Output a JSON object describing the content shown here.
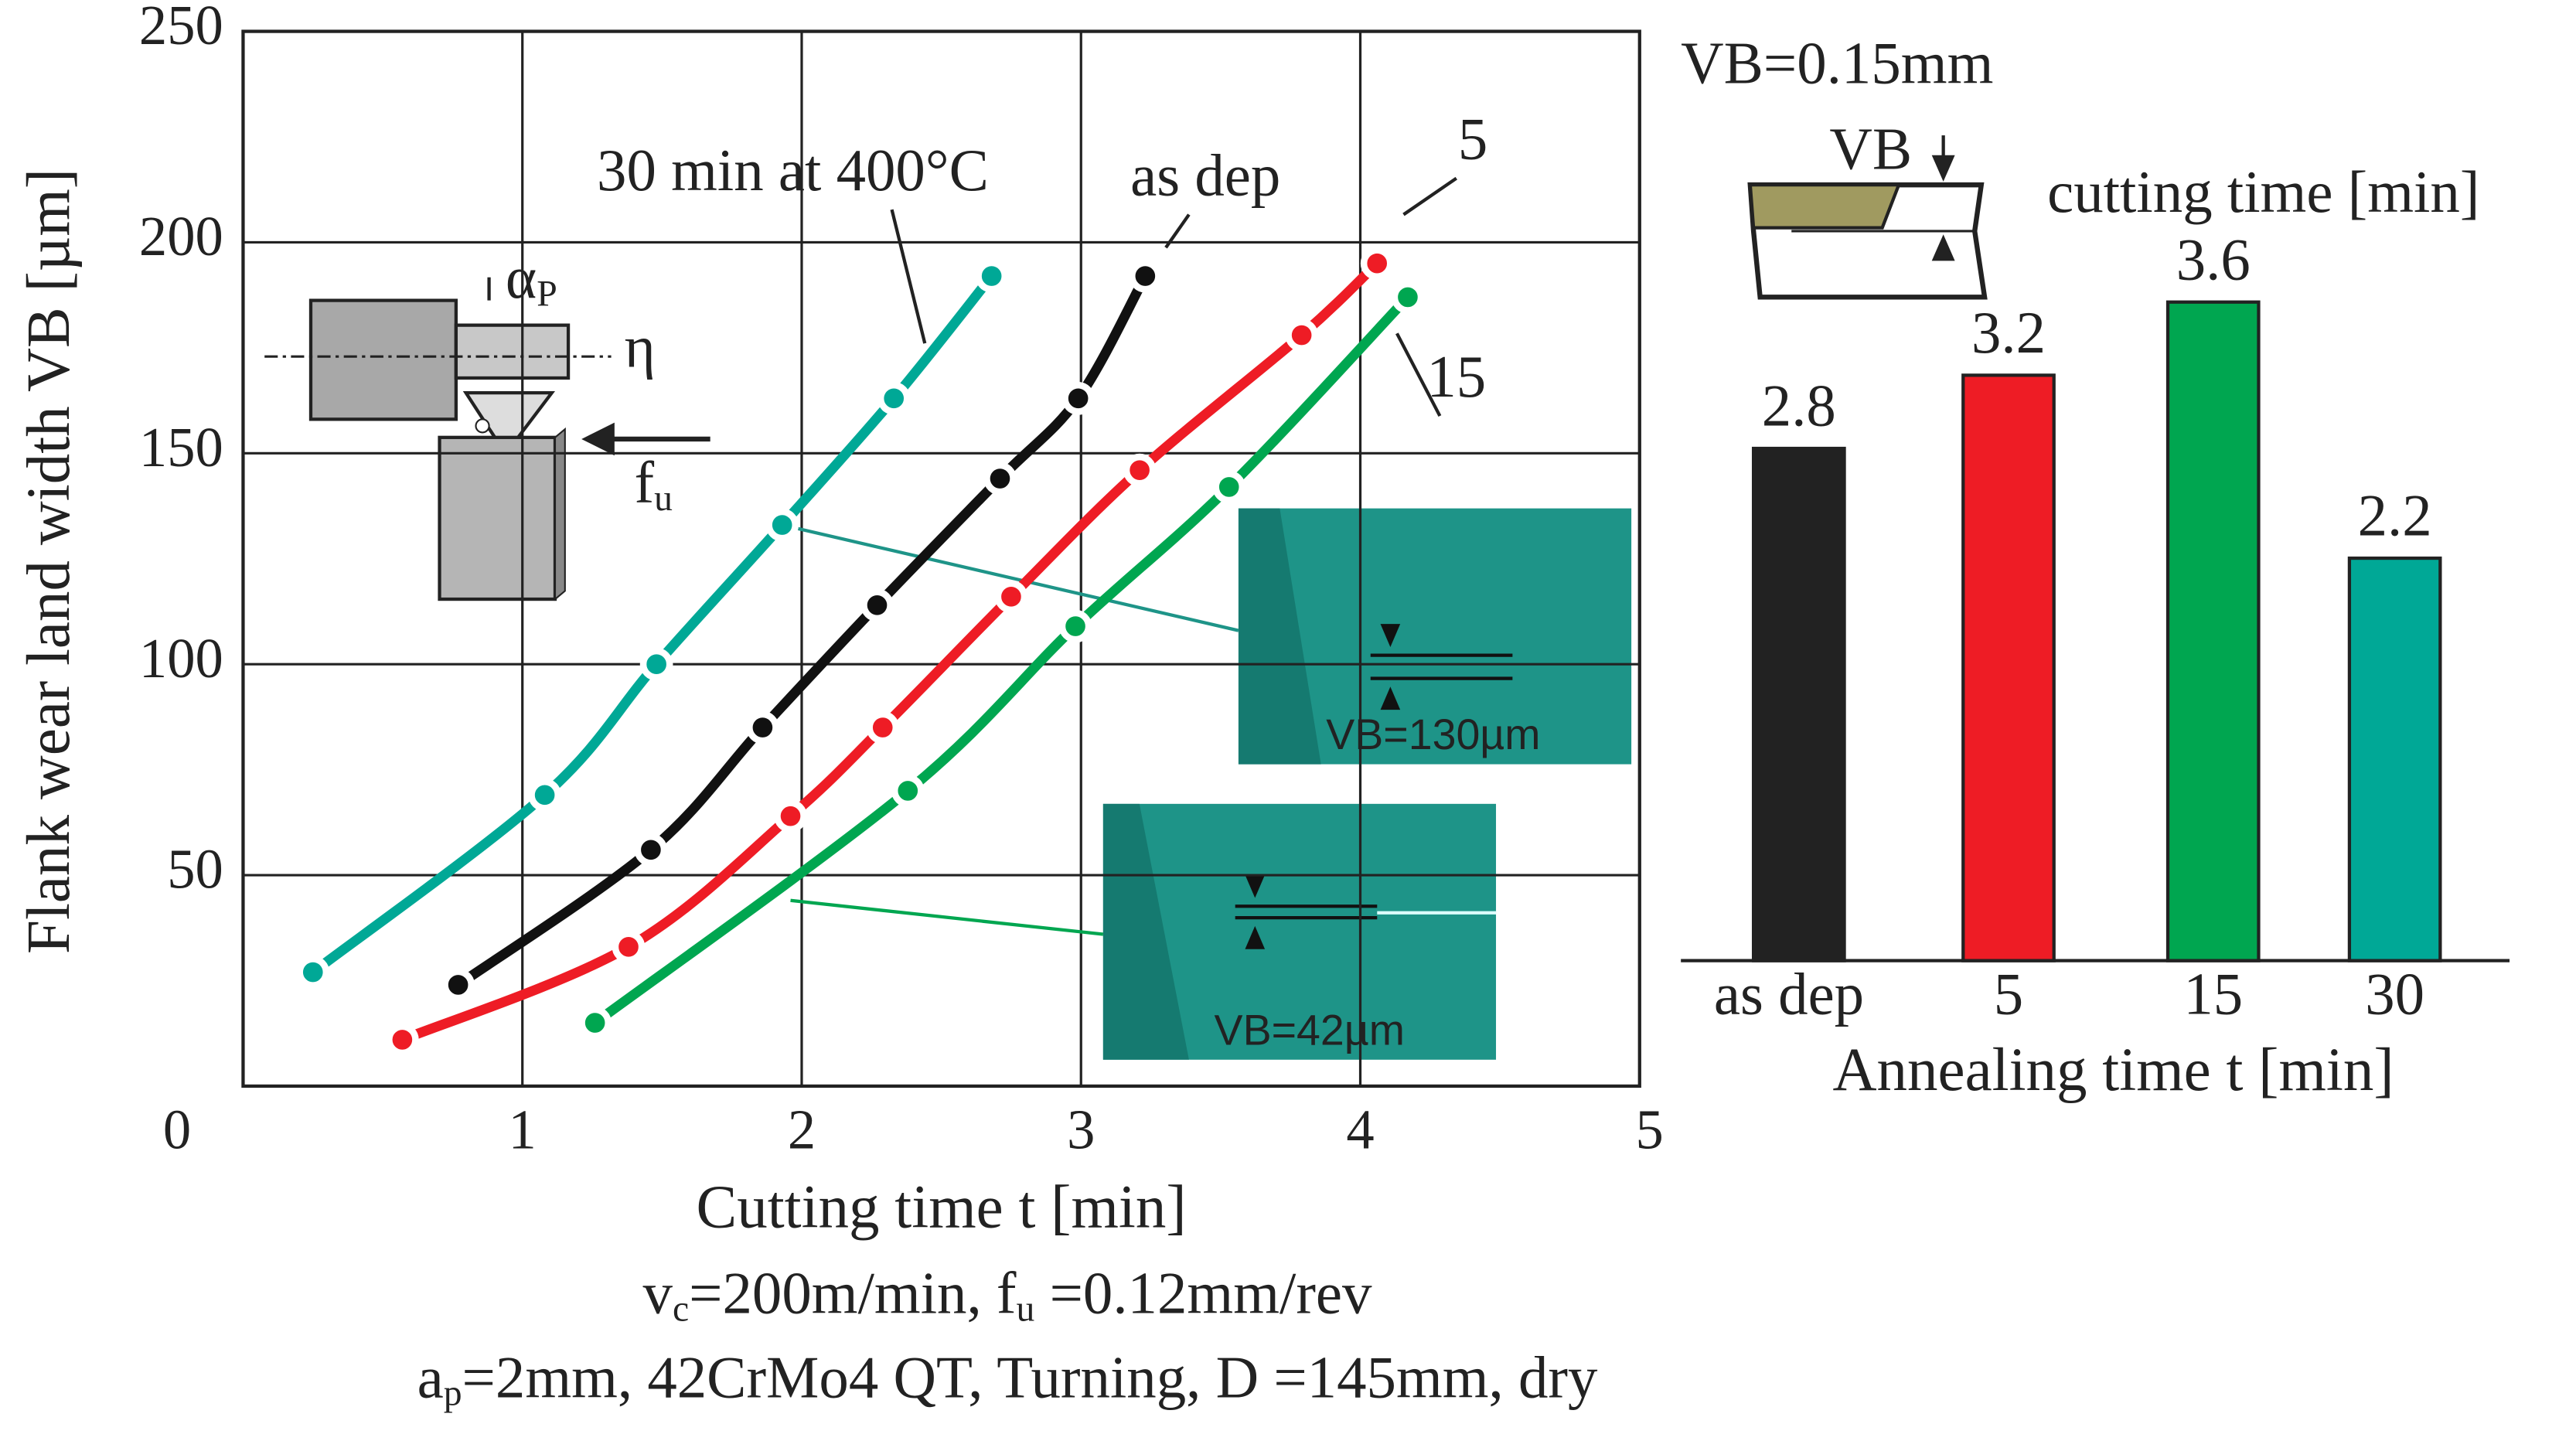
{
  "chart_data": [
    {
      "type": "line",
      "xlabel": "Cutting time t [min]",
      "ylabel": "Flank wear land width VB [µm]",
      "xlim": [
        0,
        5
      ],
      "xticks": [
        0,
        1,
        2,
        3,
        4,
        5
      ],
      "ylim": [
        0,
        250
      ],
      "yticks": [
        50,
        100,
        150,
        200,
        250
      ],
      "grid": true,
      "series": [
        {
          "name": "30 min at 400°C",
          "color": "#00a896",
          "x": [
            0.25,
            1.08,
            1.48,
            1.93,
            2.33,
            2.68
          ],
          "values": [
            27,
            69,
            100,
            133,
            163,
            192
          ]
        },
        {
          "name": "as dep",
          "color": "#111111",
          "x": [
            0.77,
            1.46,
            1.86,
            2.27,
            2.71,
            2.99,
            3.23
          ],
          "values": [
            24,
            56,
            85,
            114,
            144,
            163,
            192
          ]
        },
        {
          "name": "5",
          "color": "#ee1c25",
          "x": [
            0.57,
            1.38,
            1.96,
            2.29,
            2.75,
            3.21,
            3.79,
            4.06
          ],
          "values": [
            11,
            33,
            64,
            85,
            116,
            146,
            178,
            195
          ]
        },
        {
          "name": "15",
          "color": "#00a650",
          "x": [
            1.26,
            2.38,
            2.98,
            3.53,
            4.17
          ],
          "values": [
            15,
            70,
            109,
            142,
            187
          ]
        }
      ],
      "annotations": [
        "VB=130µm",
        "VB=42µm"
      ],
      "conditions": [
        [
          "v",
          "c",
          "=200m/min, f",
          "u",
          " =0.12mm/rev"
        ],
        [
          "a",
          "p",
          "=2mm, 42CrMo4 QT, Turning, D =145mm, dry"
        ]
      ],
      "tool_labels": [
        "α",
        "P",
        "η",
        "f",
        "u"
      ]
    },
    {
      "type": "bar",
      "title": "VB=0.15mm",
      "inset_label": "VB",
      "subtitle": "cutting time [min]",
      "categories": [
        "as dep",
        "5",
        "15",
        "30"
      ],
      "values": [
        2.8,
        3.2,
        3.6,
        2.2
      ],
      "colors": [
        "#222222",
        "#ee1c25",
        "#00a650",
        "#00a896"
      ],
      "xlabel": "Annealing time t [min]"
    }
  ]
}
